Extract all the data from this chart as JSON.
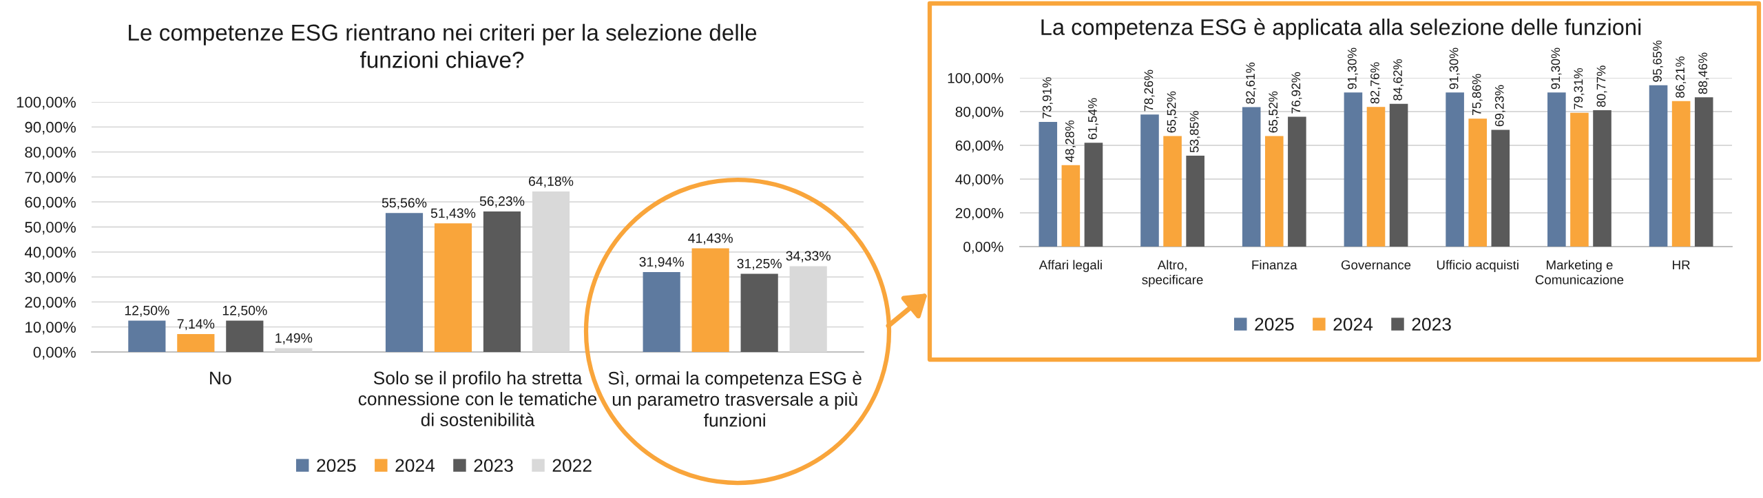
{
  "chart_data": [
    {
      "type": "bar",
      "title": "Le competenze ESG rientrano nei criteri per la selezione delle\nfunzioni chiave?",
      "categories": [
        "No",
        "Solo se il profilo ha stretta\nconnessione con le tematiche\ndi sostenibilità",
        "Sì, ormai la competenza ESG è\nun parametro trasversale a più\nfunzioni"
      ],
      "series": [
        {
          "name": "2025",
          "color": "#5E7A9F",
          "values": [
            12.5,
            55.56,
            31.94
          ],
          "value_labels": [
            "12,50%",
            "55,56%",
            "31,94%"
          ]
        },
        {
          "name": "2024",
          "color": "#F9A53B",
          "values": [
            7.14,
            51.43,
            41.43
          ],
          "value_labels": [
            "7,14%",
            "51,43%",
            "41,43%"
          ]
        },
        {
          "name": "2023",
          "color": "#5A5A5A",
          "values": [
            12.5,
            56.23,
            31.25
          ],
          "value_labels": [
            "12,50%",
            "56,23%",
            "31,25%"
          ]
        },
        {
          "name": "2022",
          "color": "#D9D9D9",
          "values": [
            1.49,
            64.18,
            34.33
          ],
          "value_labels": [
            "1,49%",
            "64,18%",
            "34,33%"
          ]
        }
      ],
      "ylim": [
        0,
        100
      ],
      "yticks": [
        {
          "value": 0,
          "label": "0,00%"
        },
        {
          "value": 10,
          "label": "10,00%"
        },
        {
          "value": 20,
          "label": "20,00%"
        },
        {
          "value": 30,
          "label": "30,00%"
        },
        {
          "value": 40,
          "label": "40,00%"
        },
        {
          "value": 50,
          "label": "50,00%"
        },
        {
          "value": 60,
          "label": "60,00%"
        },
        {
          "value": 70,
          "label": "70,00%"
        },
        {
          "value": 80,
          "label": "80,00%"
        },
        {
          "value": 90,
          "label": "90,00%"
        },
        {
          "value": 100,
          "label": "100,00%"
        }
      ],
      "grid": "y",
      "legend": "bottom"
    },
    {
      "type": "bar",
      "title": "La competenza ESG è applicata alla selezione delle funzioni",
      "categories": [
        "Affari legali",
        "Altro,\nspecificare",
        "Finanza",
        "Governance",
        "Ufficio acquisti",
        "Marketing e\nComunicazione",
        "HR"
      ],
      "series": [
        {
          "name": "2025",
          "color": "#5E7A9F",
          "values": [
            73.91,
            78.26,
            82.61,
            91.3,
            91.3,
            91.3,
            95.65
          ],
          "value_labels": [
            "73,91%",
            "78,26%",
            "82,61%",
            "91,30%",
            "91,30%",
            "91,30%",
            "95,65%"
          ]
        },
        {
          "name": "2024",
          "color": "#F9A53B",
          "values": [
            48.28,
            65.52,
            65.52,
            82.76,
            75.86,
            79.31,
            86.21
          ],
          "value_labels": [
            "48,28%",
            "65,52%",
            "65,52%",
            "82,76%",
            "75,86%",
            "79,31%",
            "86,21%"
          ]
        },
        {
          "name": "2023",
          "color": "#5A5A5A",
          "values": [
            61.54,
            53.85,
            76.92,
            84.62,
            69.23,
            80.77,
            88.46
          ],
          "value_labels": [
            "61,54%",
            "53,85%",
            "76,92%",
            "84,62%",
            "69,23%",
            "80,77%",
            "88,46%"
          ]
        }
      ],
      "ylim": [
        0,
        100
      ],
      "yticks": [
        {
          "value": 0,
          "label": "0,00%"
        },
        {
          "value": 20,
          "label": "20,00%"
        },
        {
          "value": 40,
          "label": "40,00%"
        },
        {
          "value": 60,
          "label": "60,00%"
        },
        {
          "value": 80,
          "label": "80,00%"
        },
        {
          "value": 100,
          "label": "100,00%"
        }
      ],
      "grid": "y",
      "legend": "bottom"
    }
  ]
}
